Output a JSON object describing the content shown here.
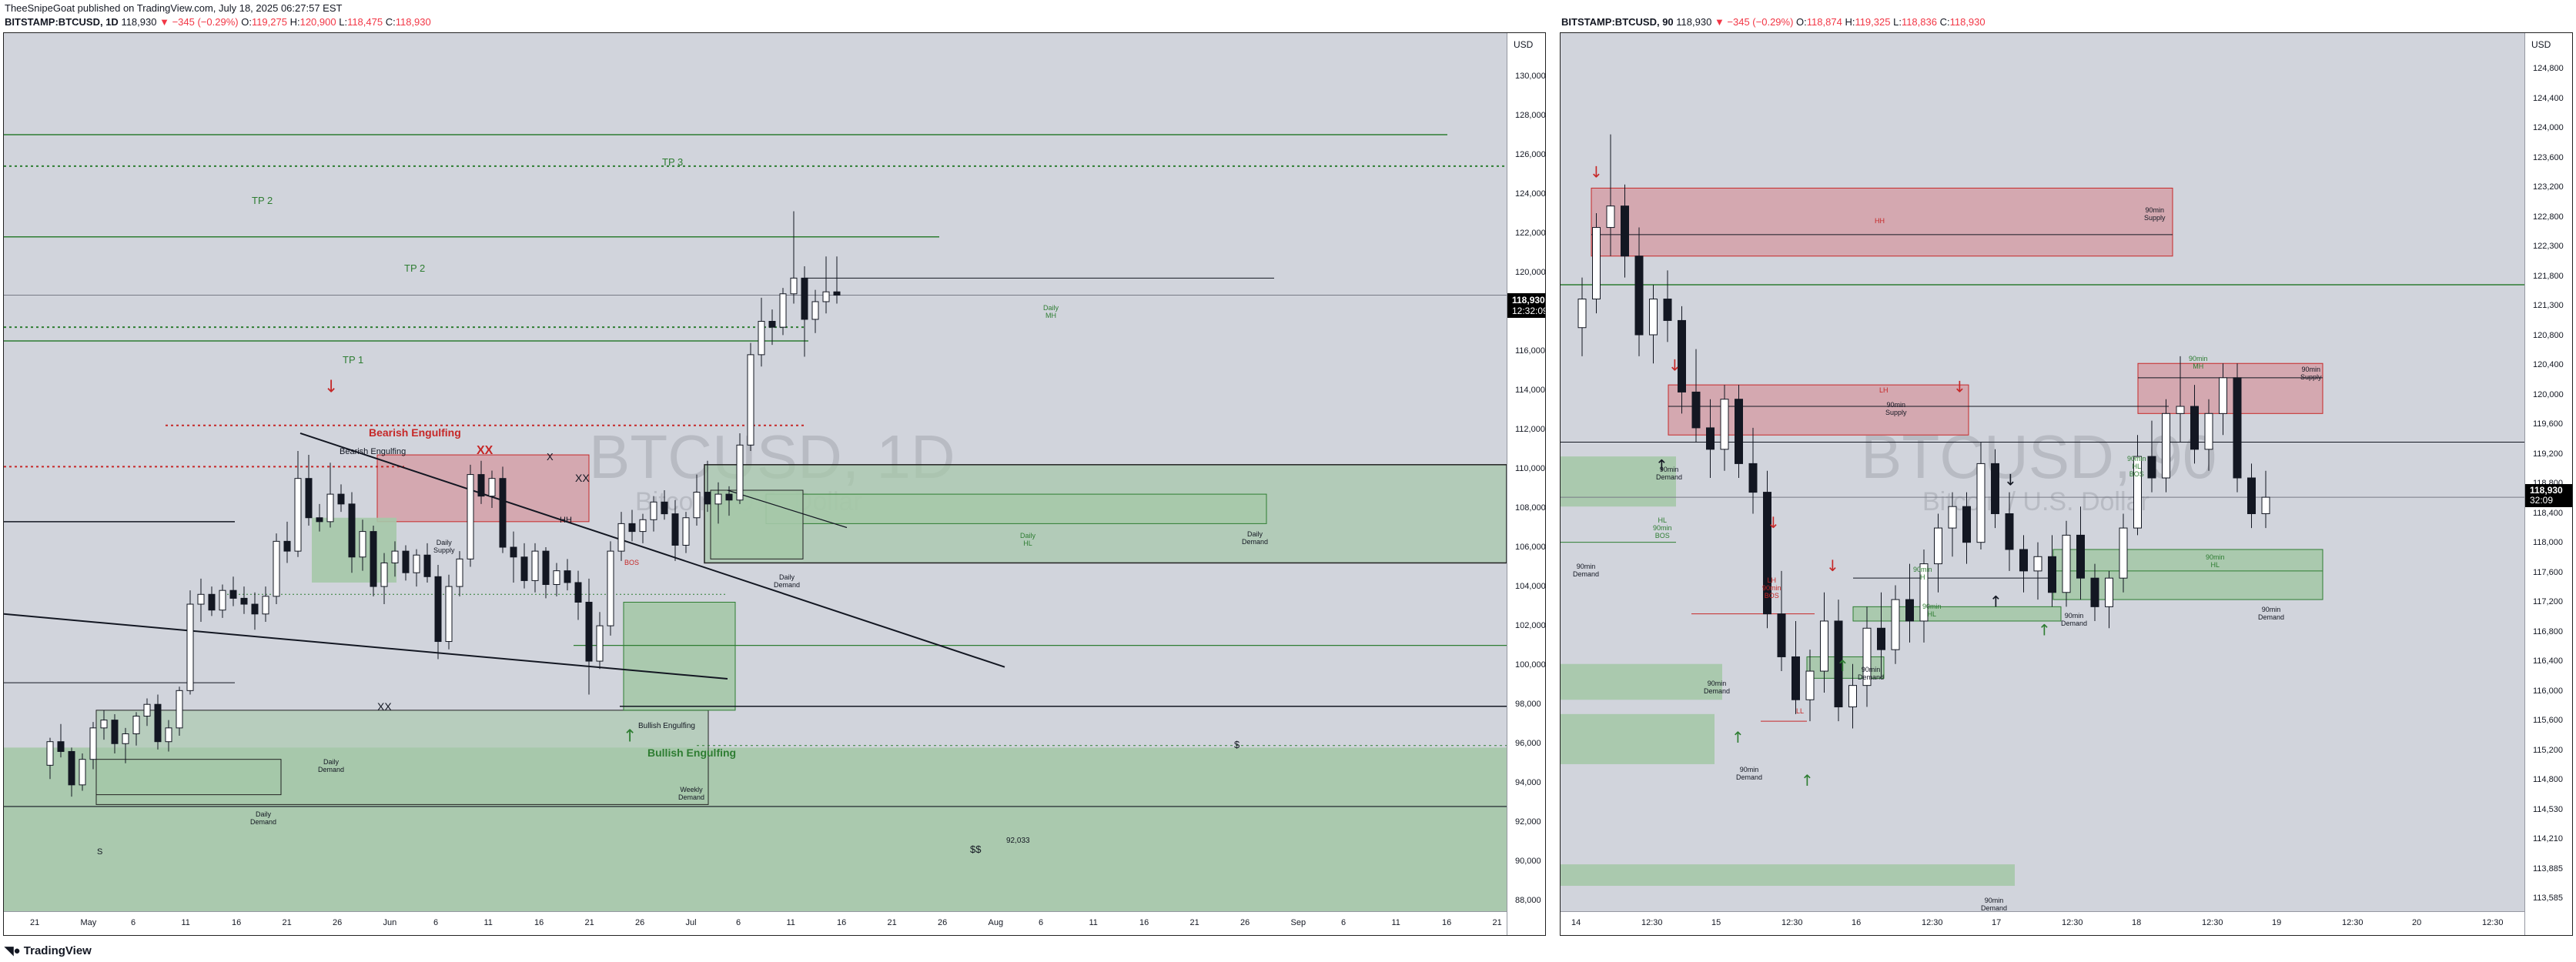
{
  "header": {
    "published": "TheeSnipeGoat published on TradingView.com, July 18, 2025 06:27:57 EST",
    "left": {
      "symbol": "BITSTAMP:BTCUSD, 1D",
      "price": "118,930",
      "change": "▼ −345 (−0.29%)",
      "o": "O:",
      "o_val": "119,275",
      "h": "H:",
      "h_val": "120,900",
      "l": "L:",
      "l_val": "118,475",
      "c": "C:",
      "c_val": "118,930"
    },
    "right": {
      "symbol": "BITSTAMP:BTCUSD, 90",
      "price": "118,930",
      "change": "▼ −345 (−0.29%)",
      "o": "O:",
      "o_val": "118,874",
      "h": "H:",
      "h_val": "119,325",
      "l": "L:",
      "l_val": "118,836",
      "c": "C:",
      "c_val": "118,930"
    }
  },
  "left_chart": {
    "currency": "USD",
    "watermark": "BTCUSD, 1D",
    "watermark_sub": "Bitcoin / U.S. Dollar",
    "price_labels": [
      "130,000",
      "128,000",
      "126,000",
      "124,000",
      "122,000",
      "120,000",
      "118,000",
      "116,000",
      "114,000",
      "112,000",
      "110,000",
      "108,000",
      "106,000",
      "104,000",
      "102,000",
      "100,000",
      "98,000",
      "96,000",
      "94,000",
      "92,000",
      "90,000",
      "88,000"
    ],
    "current_price": "118,930",
    "countdown": "12:32:09",
    "time_labels": [
      "21",
      "May",
      "6",
      "11",
      "16",
      "21",
      "26",
      "Jun",
      "6",
      "11",
      "16",
      "21",
      "26",
      "Jul",
      "6",
      "11",
      "16",
      "21",
      "26",
      "Aug",
      "6",
      "11",
      "16",
      "21",
      "26",
      "Sep",
      "6",
      "11",
      "16",
      "21"
    ],
    "annotations": {
      "tp3": "TP 3",
      "tp2a": "TP 2",
      "tp2b": "TP 2",
      "tp1": "TP 1",
      "bearish_big": "Bearish Engulfing",
      "bearish_small": "Bearish Engulfing",
      "xx1": "XX",
      "xx2": "XX",
      "xx3": "XX",
      "x1": "X",
      "bullish_big": "Bullish Engulfing",
      "bullish_small": "Bullish Engulfing",
      "daily_mh": "Daily\nMH",
      "daily_supply": "Daily\nSupply",
      "hh": "HH",
      "daily_demand1": "Daily\nDemand",
      "daily_demand2": "Daily\nDemand",
      "daily_demand3": "Daily\nDemand",
      "daily_demand4": "Daily\nDemand",
      "daily_hl": "Daily\nHL",
      "weekly_demand": "Weekly\nDemand",
      "bos": "BOS",
      "dollar1": "$",
      "dollar2": "$$",
      "s1": "S",
      "low_label": "92,033"
    }
  },
  "right_chart": {
    "currency": "USD",
    "watermark": "BTCUSD, 90",
    "watermark_sub": "Bitcoin / U.S. Dollar",
    "price_labels": [
      "124,800",
      "124,400",
      "124,000",
      "123,600",
      "123,200",
      "122,800",
      "122,300",
      "121,800",
      "121,300",
      "120,800",
      "120,400",
      "120,000",
      "119,600",
      "119,200",
      "118,800",
      "118,400",
      "118,000",
      "117,600",
      "117,200",
      "116,800",
      "116,400",
      "116,000",
      "115,600",
      "115,200",
      "114,800",
      "114,530",
      "114,210",
      "113,885",
      "113,585"
    ],
    "current_price": "118,930",
    "countdown": "32:09",
    "time_labels": [
      "14",
      "12:30",
      "15",
      "12:30",
      "16",
      "12:30",
      "17",
      "12:30",
      "18",
      "12:30",
      "19",
      "12:30",
      "20",
      "12:30"
    ],
    "annotations": {
      "supply1": "90min\nSupply",
      "supply2": "90min\nSupply",
      "supply3": "90min\nSupply",
      "demand1": "90min\nDemand",
      "demand2": "90min\nDemand",
      "demand3": "90min\nDemand",
      "demand4": "90min\nDemand",
      "demand5": "90min\nDemand",
      "demand6": "90min\nDemand",
      "demand7": "90min\nDemand",
      "demand8": "90min\nDemand",
      "hh": "HH",
      "lh": "LH",
      "mh": "90min\nMH",
      "hl": "90min\nHL",
      "bos1": "HL\n90min\nBOS",
      "bos2": "LH\n90min\nBOS",
      "hl2": "90min\nHL",
      "ll": "LL",
      "h1": "90min\nH",
      "hl3": "90min\nHL\nBOS"
    }
  },
  "footer": {
    "logo": "TradingView"
  },
  "colors": {
    "supply": "#d4a3ab",
    "demand": "#a5c8a8",
    "tp_green": "#2e7d32",
    "bearish_red": "#c62828",
    "bg": "#d1d4dc"
  }
}
